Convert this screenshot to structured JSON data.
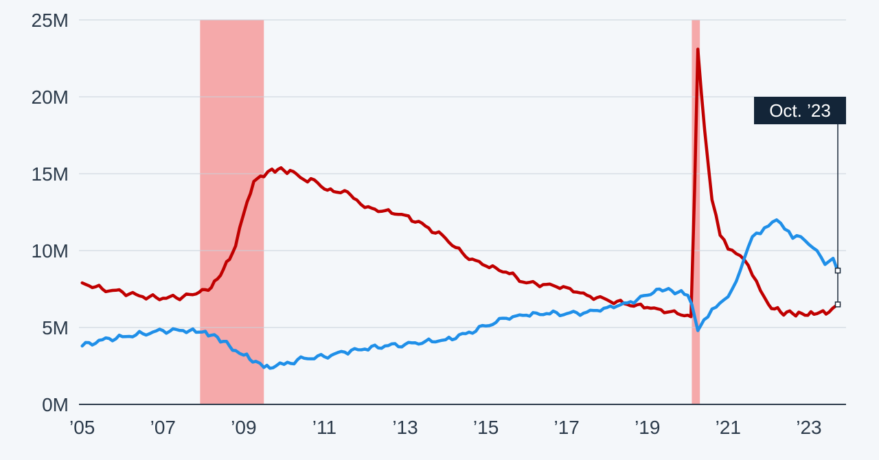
{
  "chart_data": {
    "type": "line",
    "title": "",
    "xlabel": "",
    "ylabel": "",
    "xlim": [
      2004.92,
      2023.92
    ],
    "ylim": [
      0,
      25
    ],
    "y_unit": "millions",
    "y_ticks": [
      {
        "value": 0,
        "label": "0M"
      },
      {
        "value": 5,
        "label": "5M"
      },
      {
        "value": 10,
        "label": "10M"
      },
      {
        "value": 15,
        "label": "15M"
      },
      {
        "value": 20,
        "label": "20M"
      },
      {
        "value": 25,
        "label": "25M"
      }
    ],
    "x_ticks": [
      {
        "value": 2005,
        "label": "’05"
      },
      {
        "value": 2007,
        "label": "’07"
      },
      {
        "value": 2009,
        "label": "’09"
      },
      {
        "value": 2011,
        "label": "’11"
      },
      {
        "value": 2013,
        "label": "’13"
      },
      {
        "value": 2015,
        "label": "’15"
      },
      {
        "value": 2017,
        "label": "’17"
      },
      {
        "value": 2019,
        "label": "’19"
      },
      {
        "value": 2021,
        "label": "’21"
      },
      {
        "value": 2023,
        "label": "’23"
      }
    ],
    "grid": true,
    "legend": "none",
    "shaded_periods": [
      {
        "start": 2007.92,
        "end": 2009.5,
        "color": "#f5a9aa"
      },
      {
        "start": 2020.1,
        "end": 2020.3,
        "color": "#f5a9aa"
      }
    ],
    "annotation": {
      "label": "Oct. ’23",
      "x": 2023.75
    },
    "series": [
      {
        "color": "#c00000",
        "x": [
          2005.0,
          2005.5,
          2006.0,
          2006.5,
          2007.0,
          2007.5,
          2007.9,
          2008.2,
          2008.5,
          2008.8,
          2009.0,
          2009.25,
          2009.5,
          2009.7,
          2010.0,
          2010.3,
          2010.5,
          2010.75,
          2011.0,
          2011.3,
          2011.5,
          2011.8,
          2012.0,
          2012.5,
          2013.0,
          2013.5,
          2014.0,
          2014.5,
          2015.0,
          2015.5,
          2016.0,
          2016.5,
          2017.0,
          2017.5,
          2018.0,
          2018.5,
          2019.0,
          2019.5,
          2020.0,
          2020.08,
          2020.17,
          2020.25,
          2020.42,
          2020.6,
          2020.8,
          2021.0,
          2021.2,
          2021.4,
          2021.6,
          2021.8,
          2022.0,
          2022.3,
          2022.6,
          2022.9,
          2023.2,
          2023.5,
          2023.75
        ],
        "values": [
          7.9,
          7.5,
          7.3,
          7.0,
          6.9,
          7.0,
          7.3,
          7.6,
          8.8,
          10.3,
          12.4,
          14.5,
          14.8,
          15.3,
          15.2,
          15.0,
          14.6,
          14.6,
          14.0,
          13.8,
          13.9,
          13.3,
          12.8,
          12.6,
          12.3,
          11.6,
          10.8,
          9.6,
          9.0,
          8.6,
          7.9,
          7.8,
          7.6,
          7.1,
          6.8,
          6.5,
          6.3,
          6.0,
          5.8,
          5.7,
          14.0,
          23.1,
          17.8,
          13.3,
          11.0,
          10.1,
          9.8,
          9.4,
          8.4,
          7.4,
          6.5,
          6.0,
          5.9,
          5.8,
          5.9,
          6.0,
          6.5
        ]
      },
      {
        "color": "#1f8fe8",
        "x": [
          2005.0,
          2005.5,
          2006.0,
          2006.5,
          2007.0,
          2007.5,
          2007.9,
          2008.2,
          2008.5,
          2008.8,
          2009.0,
          2009.3,
          2009.5,
          2009.8,
          2010.0,
          2010.5,
          2011.0,
          2011.5,
          2012.0,
          2012.5,
          2013.0,
          2013.5,
          2014.0,
          2014.5,
          2015.0,
          2015.5,
          2016.0,
          2016.5,
          2017.0,
          2017.5,
          2018.0,
          2018.5,
          2019.0,
          2019.3,
          2019.6,
          2020.0,
          2020.1,
          2020.25,
          2020.4,
          2020.6,
          2020.8,
          2021.0,
          2021.2,
          2021.4,
          2021.6,
          2021.8,
          2022.0,
          2022.2,
          2022.4,
          2022.6,
          2022.8,
          2023.0,
          2023.2,
          2023.4,
          2023.6,
          2023.75
        ],
        "values": [
          3.8,
          4.2,
          4.4,
          4.6,
          4.8,
          4.8,
          4.7,
          4.5,
          4.1,
          3.5,
          3.2,
          2.8,
          2.4,
          2.5,
          2.6,
          3.0,
          3.1,
          3.4,
          3.6,
          3.8,
          3.9,
          4.1,
          4.2,
          4.6,
          5.1,
          5.6,
          5.8,
          5.9,
          5.9,
          6.0,
          6.3,
          6.6,
          7.1,
          7.5,
          7.4,
          7.1,
          6.5,
          4.8,
          5.5,
          6.2,
          6.6,
          7.0,
          8.0,
          9.5,
          10.9,
          11.1,
          11.6,
          12.0,
          11.4,
          10.8,
          10.9,
          10.4,
          10.0,
          9.1,
          9.5,
          8.7
        ]
      }
    ]
  }
}
